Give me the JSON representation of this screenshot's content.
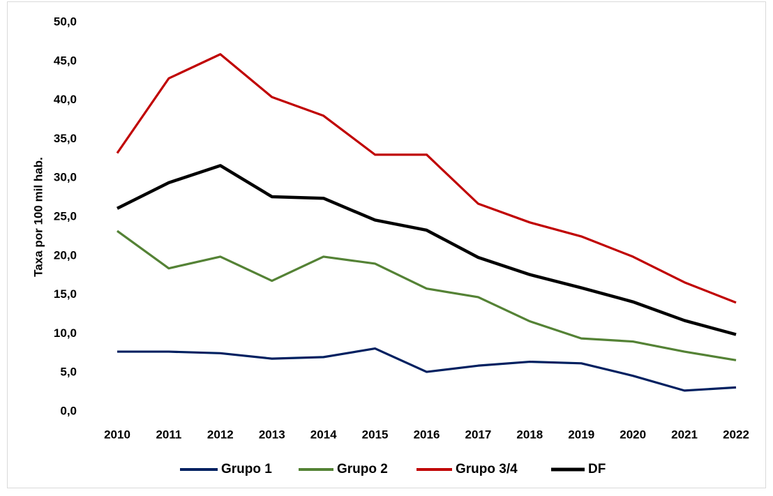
{
  "chart_data": {
    "type": "line",
    "y_label": "Taxa por 100 mil hab.",
    "categories": [
      "2010",
      "2011",
      "2012",
      "2013",
      "2014",
      "2015",
      "2016",
      "2017",
      "2018",
      "2019",
      "2020",
      "2021",
      "2022"
    ],
    "series": [
      {
        "name": "Grupo 1",
        "color": "#002060",
        "values": [
          7.7,
          7.7,
          7.5,
          6.8,
          7.0,
          8.1,
          5.1,
          5.9,
          6.4,
          6.2,
          4.6,
          2.7,
          3.1
        ]
      },
      {
        "name": "Grupo 2",
        "color": "#548235",
        "values": [
          23.2,
          18.4,
          19.9,
          16.8,
          19.9,
          19.0,
          15.8,
          14.7,
          11.6,
          9.4,
          9.0,
          7.7,
          6.6
        ]
      },
      {
        "name": "Grupo 3/4",
        "color": "#c00000",
        "values": [
          33.2,
          42.8,
          45.9,
          40.4,
          38.0,
          33.0,
          33.0,
          26.7,
          24.3,
          22.5,
          19.9,
          16.6,
          14.0
        ]
      },
      {
        "name": "DF",
        "color": "#000000",
        "values": [
          26.1,
          29.4,
          31.6,
          27.6,
          27.4,
          24.6,
          23.3,
          19.8,
          17.6,
          15.9,
          14.1,
          11.7,
          9.9
        ]
      }
    ],
    "ylim": [
      0,
      50
    ],
    "yticks": [
      {
        "value": 0,
        "label": "0,0"
      },
      {
        "value": 5,
        "label": "5,0"
      },
      {
        "value": 10,
        "label": "10,0"
      },
      {
        "value": 15,
        "label": "15,0"
      },
      {
        "value": 20,
        "label": "20,0"
      },
      {
        "value": 25,
        "label": "25,0"
      },
      {
        "value": 30,
        "label": "30,0"
      },
      {
        "value": 35,
        "label": "35,0"
      },
      {
        "value": 40,
        "label": "40,0"
      },
      {
        "value": 45,
        "label": "45,0"
      },
      {
        "value": 50,
        "label": "50,0"
      }
    ],
    "grid": false,
    "legend": "bottom"
  }
}
